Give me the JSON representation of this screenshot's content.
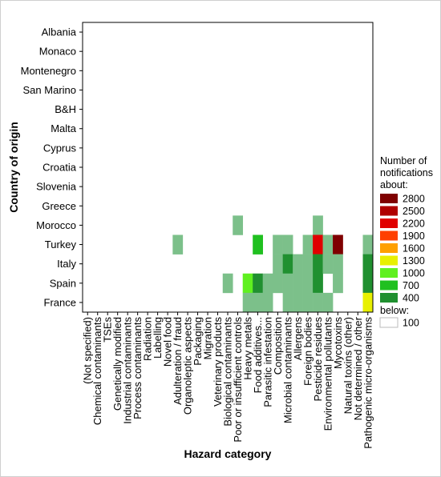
{
  "chart_data": {
    "type": "heatmap",
    "xlabel": "Hazard category",
    "ylabel": "Country of origin",
    "x_categories": [
      "(Not specified)",
      "Chemical contaminants",
      "TSEs",
      "Genetically modified",
      "Industrial contaminants",
      "Process contaminants",
      "Radiation",
      "Labelling",
      "Novel food",
      "Adulteration / fraud",
      "Organoleptic aspects",
      "Packaging",
      "Migration",
      "Veterinary products",
      "Biological contaminants",
      "Poor or insufficient controls",
      "Heavy metals",
      "Food additives...",
      "Parasitic infestation",
      "Composition",
      "Microbial contaminants",
      "Allergens",
      "Foreign bodies",
      "Pesticide residues",
      "Environmental pollutants",
      "Mycotoxins",
      "Natural toxins (other)",
      "Not determined / other",
      "Pathogenic micro-organisms"
    ],
    "y_categories": [
      "Albania",
      "Monaco",
      "Montenegro",
      "San Marino",
      "B&H",
      "Malta",
      "Cyprus",
      "Croatia",
      "Slovenia",
      "Greece",
      "Morocco",
      "Turkey",
      "Italy",
      "Spain",
      "France"
    ],
    "legend": {
      "title": [
        "Number of",
        "notifications",
        "about:"
      ],
      "levels": [
        {
          "label": "2800",
          "value": 2800,
          "color": "#7f0000"
        },
        {
          "label": "2500",
          "value": 2500,
          "color": "#b00000"
        },
        {
          "label": "2200",
          "value": 2200,
          "color": "#e00000"
        },
        {
          "label": "1900",
          "value": 1900,
          "color": "#ff4000"
        },
        {
          "label": "1600",
          "value": 1600,
          "color": "#ffa000"
        },
        {
          "label": "1300",
          "value": 1300,
          "color": "#e8f000"
        },
        {
          "label": "1000",
          "value": 1000,
          "color": "#60f020"
        },
        {
          "label": "700",
          "value": 700,
          "color": "#20c020"
        },
        {
          "label": "400",
          "value": 400,
          "color": "#209030"
        }
      ],
      "below_label": "below:",
      "below_value": "100",
      "below_color": "#ffffff"
    },
    "cells": [
      {
        "y": "Morocco",
        "x": "Poor or insufficient controls",
        "value": 150
      },
      {
        "y": "Morocco",
        "x": "Pesticide residues",
        "value": 150
      },
      {
        "y": "Turkey",
        "x": "Adulteration / fraud",
        "value": 150
      },
      {
        "y": "Turkey",
        "x": "Food additives...",
        "value": 700
      },
      {
        "y": "Turkey",
        "x": "Composition",
        "value": 150
      },
      {
        "y": "Turkey",
        "x": "Microbial contaminants",
        "value": 150
      },
      {
        "y": "Turkey",
        "x": "Foreign bodies",
        "value": 150
      },
      {
        "y": "Turkey",
        "x": "Pesticide residues",
        "value": 2200
      },
      {
        "y": "Turkey",
        "x": "Environmental pollutants",
        "value": 150
      },
      {
        "y": "Turkey",
        "x": "Mycotoxins",
        "value": 2800
      },
      {
        "y": "Turkey",
        "x": "Pathogenic micro-organisms",
        "value": 150
      },
      {
        "y": "Italy",
        "x": "Composition",
        "value": 150
      },
      {
        "y": "Italy",
        "x": "Microbial contaminants",
        "value": 400
      },
      {
        "y": "Italy",
        "x": "Allergens",
        "value": 150
      },
      {
        "y": "Italy",
        "x": "Foreign bodies",
        "value": 150
      },
      {
        "y": "Italy",
        "x": "Pesticide residues",
        "value": 400
      },
      {
        "y": "Italy",
        "x": "Environmental pollutants",
        "value": 150
      },
      {
        "y": "Italy",
        "x": "Mycotoxins",
        "value": 150
      },
      {
        "y": "Italy",
        "x": "Pathogenic micro-organisms",
        "value": 400
      },
      {
        "y": "Spain",
        "x": "Biological contaminants",
        "value": 150
      },
      {
        "y": "Spain",
        "x": "Heavy metals",
        "value": 1000
      },
      {
        "y": "Spain",
        "x": "Food additives...",
        "value": 400
      },
      {
        "y": "Spain",
        "x": "Parasitic infestation",
        "value": 150
      },
      {
        "y": "Spain",
        "x": "Composition",
        "value": 150
      },
      {
        "y": "Spain",
        "x": "Microbial contaminants",
        "value": 150
      },
      {
        "y": "Spain",
        "x": "Allergens",
        "value": 150
      },
      {
        "y": "Spain",
        "x": "Foreign bodies",
        "value": 150
      },
      {
        "y": "Spain",
        "x": "Pesticide residues",
        "value": 400
      },
      {
        "y": "Spain",
        "x": "Mycotoxins",
        "value": 150
      },
      {
        "y": "Spain",
        "x": "Pathogenic micro-organisms",
        "value": 400
      },
      {
        "y": "France",
        "x": "Heavy metals",
        "value": 150
      },
      {
        "y": "France",
        "x": "Food additives...",
        "value": 150
      },
      {
        "y": "France",
        "x": "Parasitic infestation",
        "value": 150
      },
      {
        "y": "France",
        "x": "Microbial contaminants",
        "value": 150
      },
      {
        "y": "France",
        "x": "Allergens",
        "value": 150
      },
      {
        "y": "France",
        "x": "Foreign bodies",
        "value": 150
      },
      {
        "y": "France",
        "x": "Pesticide residues",
        "value": 150
      },
      {
        "y": "France",
        "x": "Environmental pollutants",
        "value": 150
      },
      {
        "y": "France",
        "x": "Pathogenic micro-organisms",
        "value": 1300
      }
    ],
    "low_bin_color": "#7cc08a",
    "grid": false
  }
}
